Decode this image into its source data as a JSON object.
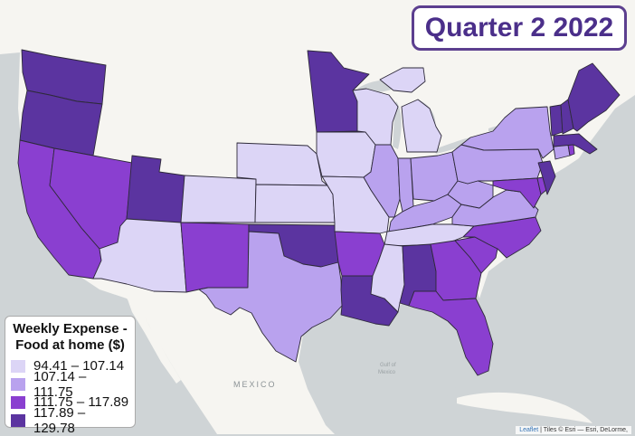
{
  "title": "Quarter 2 2022",
  "legend": {
    "title_line1": "Weekly Expense -",
    "title_line2": "Food at home ($)",
    "items": [
      {
        "label": "94.41 – 107.14",
        "color": "#dcd5f6"
      },
      {
        "label": "107.14 – 111.75",
        "color": "#b9a2ee"
      },
      {
        "label": "111.75 – 117.89",
        "color": "#8a3fd0"
      },
      {
        "label": "117.89 – 129.78",
        "color": "#5b34a0"
      }
    ]
  },
  "basemap_labels": {
    "mexico": "MEXICO",
    "gulf_line1": "Gulf of",
    "gulf_line2": "Mexico"
  },
  "attribution": {
    "leaflet": "Leaflet",
    "text": " | Tiles © Esri — Esri, DeLorme,"
  },
  "colors": {
    "land": "#f6f5f1",
    "water": "#cfd4d6",
    "nodata": "#ffffff",
    "title_border": "#5c3f8f",
    "title_text": "#4b2f8a"
  },
  "states": [
    {
      "name": "WA",
      "class": 4
    },
    {
      "name": "OR",
      "class": 4
    },
    {
      "name": "CA",
      "class": 3
    },
    {
      "name": "NV",
      "class": 3
    },
    {
      "name": "UT",
      "class": 4
    },
    {
      "name": "AZ",
      "class": 1
    },
    {
      "name": "CO",
      "class": 1
    },
    {
      "name": "NM",
      "class": 3
    },
    {
      "name": "NE",
      "class": 1
    },
    {
      "name": "KS",
      "class": 1
    },
    {
      "name": "OK",
      "class": 4
    },
    {
      "name": "TX",
      "class": 2
    },
    {
      "name": "MN",
      "class": 4
    },
    {
      "name": "IA",
      "class": 1
    },
    {
      "name": "MO",
      "class": 1
    },
    {
      "name": "AR",
      "class": 3
    },
    {
      "name": "LA",
      "class": 4
    },
    {
      "name": "WI",
      "class": 1
    },
    {
      "name": "MI",
      "class": 1
    },
    {
      "name": "IL",
      "class": 2
    },
    {
      "name": "IN",
      "class": 2
    },
    {
      "name": "OH",
      "class": 2
    },
    {
      "name": "KY",
      "class": 2
    },
    {
      "name": "TN",
      "class": 1
    },
    {
      "name": "MS",
      "class": 1
    },
    {
      "name": "AL",
      "class": 4
    },
    {
      "name": "GA",
      "class": 3
    },
    {
      "name": "FL",
      "class": 3
    },
    {
      "name": "SC",
      "class": 3
    },
    {
      "name": "NC",
      "class": 3
    },
    {
      "name": "VA",
      "class": 2
    },
    {
      "name": "WV",
      "class": 2
    },
    {
      "name": "PA",
      "class": 2
    },
    {
      "name": "NY",
      "class": 2
    },
    {
      "name": "MD",
      "class": 3
    },
    {
      "name": "DE",
      "class": 3
    },
    {
      "name": "NJ",
      "class": 4
    },
    {
      "name": "CT",
      "class": 2
    },
    {
      "name": "RI",
      "class": 3
    },
    {
      "name": "MA",
      "class": 4
    },
    {
      "name": "VT",
      "class": 4
    },
    {
      "name": "NH",
      "class": 4
    },
    {
      "name": "ME",
      "class": 4
    }
  ]
}
